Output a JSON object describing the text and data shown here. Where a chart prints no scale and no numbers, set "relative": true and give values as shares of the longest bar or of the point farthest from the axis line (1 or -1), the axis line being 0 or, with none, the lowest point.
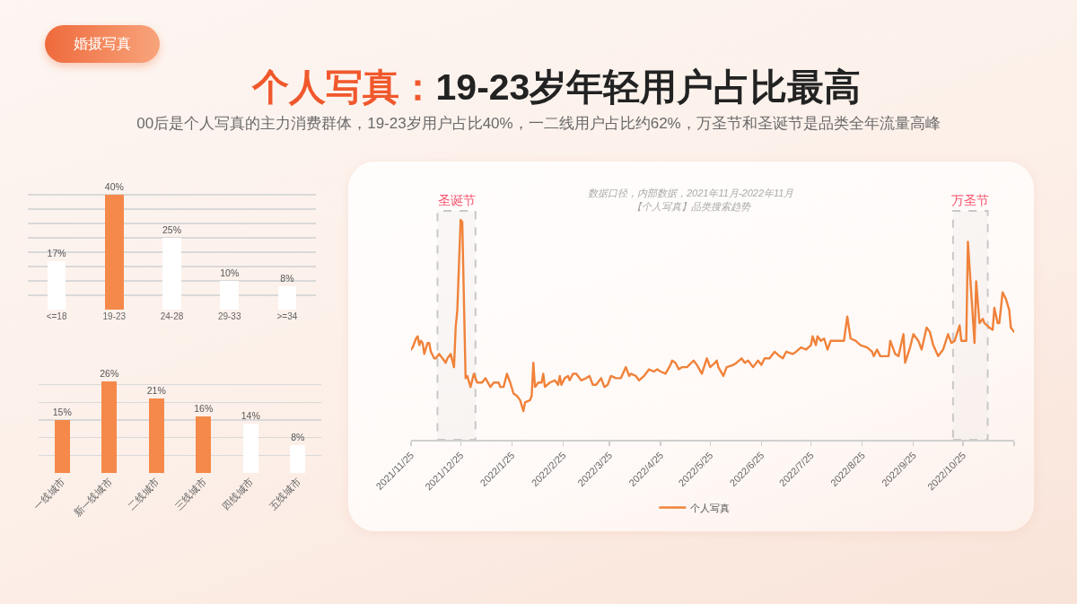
{
  "chart_data": [
    {
      "type": "bar",
      "title": "个人写真：19-23岁年轻用户占比最高",
      "subtitle": "00后是个人写真的主力消费群体，19-23岁用户占比40%，一二线用户占比约62%，万圣节和圣诞节是品类全年流量高峰",
      "annotations": [
        "婚摄写真"
      ],
      "categories": [
        "<=18",
        "19-23",
        "24-28",
        "29-33",
        ">=34"
      ],
      "values": [
        17,
        40,
        25,
        10,
        8
      ],
      "value_labels": [
        "17%",
        "40%",
        "25%",
        "10%",
        "8%"
      ],
      "colors": [
        "#ffffff",
        "#f5894a",
        "#ffffff",
        "#ffffff",
        "#ffffff"
      ],
      "grid": "y",
      "tick_labels": "x"
    },
    {
      "type": "bar",
      "categories": [
        "一线城市",
        "新一线城市",
        "二线城市",
        "三线城市",
        "四线城市",
        "五线城市"
      ],
      "values": [
        15,
        26,
        21,
        16,
        14,
        8
      ],
      "value_labels": [
        "15%",
        "26%",
        "21%",
        "16%",
        "14%",
        "8%"
      ],
      "colors": [
        "#f5894a",
        "#f5894a",
        "#f5894a",
        "#f5894a",
        "#ffffff",
        "#ffffff"
      ],
      "grid": "y",
      "tick_labels": "x"
    },
    {
      "type": "line",
      "title": "【个人写真】品类搜索趋势",
      "annotations": [
        "数据口径，内部数据，2021年11月-2022年11月"
      ],
      "relative": true,
      "legend": "bottom",
      "x": [
        "2021-11-25",
        "2021-11-26",
        "2021-11-28",
        "2021-11-29",
        "2021-11-30",
        "2021-12-01",
        "2021-12-02",
        "2021-12-03",
        "2021-12-05",
        "2021-12-06",
        "2021-12-07",
        "2021-12-09",
        "2021-12-10",
        "2021-12-12",
        "2021-12-14",
        "2021-12-16",
        "2021-12-17",
        "2021-12-19",
        "2021-12-21",
        "2021-12-22",
        "2021-12-23",
        "2021-12-25",
        "2021-12-26",
        "2021-12-28",
        "2021-12-29",
        "2021-12-31",
        "2022-01-02",
        "2022-01-04",
        "2022-01-07",
        "2022-01-09",
        "2022-01-12",
        "2022-01-14",
        "2022-01-17",
        "2022-01-18",
        "2022-01-20",
        "2022-01-22",
        "2022-01-24",
        "2022-01-26",
        "2022-01-28",
        "2022-01-30",
        "2022-02-01",
        "2022-02-02",
        "2022-02-05",
        "2022-02-06",
        "2022-02-07",
        "2022-02-08",
        "2022-02-10",
        "2022-02-12",
        "2022-02-13",
        "2022-02-14",
        "2022-02-17",
        "2022-02-20",
        "2022-02-22",
        "2022-02-23",
        "2022-02-24",
        "2022-02-26",
        "2022-02-28",
        "2022-03-01",
        "2022-03-03",
        "2022-03-05",
        "2022-03-06",
        "2022-03-08",
        "2022-03-11",
        "2022-03-13",
        "2022-03-15",
        "2022-03-17",
        "2022-03-20",
        "2022-03-22",
        "2022-03-24",
        "2022-03-26",
        "2022-03-29",
        "2022-04-01",
        "2022-04-04",
        "2022-04-06",
        "2022-04-07",
        "2022-04-10",
        "2022-04-12",
        "2022-04-15",
        "2022-04-18",
        "2022-04-21",
        "2022-04-23",
        "2022-04-25",
        "2022-04-28",
        "2022-05-01",
        "2022-05-02",
        "2022-05-04",
        "2022-05-06",
        "2022-05-08",
        "2022-05-11",
        "2022-05-15",
        "2022-05-17",
        "2022-05-20",
        "2022-05-23",
        "2022-05-25",
        "2022-05-28",
        "2022-05-29",
        "2022-05-30",
        "2022-06-02",
        "2022-06-04",
        "2022-06-08",
        "2022-06-10",
        "2022-06-13",
        "2022-06-15",
        "2022-06-17",
        "2022-06-20",
        "2022-06-23",
        "2022-06-25",
        "2022-06-27",
        "2022-06-30",
        "2022-07-03",
        "2022-07-06",
        "2022-07-08",
        "2022-07-10",
        "2022-07-14",
        "2022-07-16",
        "2022-07-19",
        "2022-07-22",
        "2022-07-25",
        "2022-07-26",
        "2022-07-28",
        "2022-07-29",
        "2022-07-31",
        "2022-08-02",
        "2022-08-04",
        "2022-08-06",
        "2022-08-09",
        "2022-08-12",
        "2022-08-14",
        "2022-08-16",
        "2022-08-18",
        "2022-08-21",
        "2022-08-24",
        "2022-08-28",
        "2022-08-31",
        "2022-09-01",
        "2022-09-03",
        "2022-09-05",
        "2022-09-08",
        "2022-09-10",
        "2022-09-11",
        "2022-09-14",
        "2022-09-16",
        "2022-09-19",
        "2022-09-20",
        "2022-09-23",
        "2022-09-25",
        "2022-09-28",
        "2022-09-30",
        "2022-10-03",
        "2022-10-05",
        "2022-10-07",
        "2022-10-10",
        "2022-10-13",
        "2022-10-16",
        "2022-10-18",
        "2022-10-20",
        "2022-10-23",
        "2022-10-24",
        "2022-10-27",
        "2022-10-28",
        "2022-11-01",
        "2022-11-02",
        "2022-11-04",
        "2022-11-06",
        "2022-11-07",
        "2022-11-10",
        "2022-11-12",
        "2022-11-13",
        "2022-11-15",
        "2022-11-16",
        "2022-11-18",
        "2022-11-20",
        "2022-11-22",
        "2022-11-23",
        "2022-11-25"
      ],
      "series": [
        {
          "name": "个人写真",
          "color": "#f0823a",
          "values": [
            0.41,
            0.42,
            0.46,
            0.47,
            0.43,
            0.45,
            0.44,
            0.39,
            0.44,
            0.44,
            0.4,
            0.37,
            0.37,
            0.39,
            0.37,
            0.35,
            0.37,
            0.39,
            0.33,
            0.51,
            0.59,
            1,
            0.99,
            0.28,
            0.29,
            0.24,
            0.3,
            0.26,
            0.26,
            0.28,
            0.24,
            0.26,
            0.26,
            0.24,
            0.24,
            0.3,
            0.26,
            0.21,
            0.2,
            0.18,
            0.13,
            0.17,
            0.18,
            0.2,
            0.35,
            0.24,
            0.26,
            0.26,
            0.3,
            0.24,
            0.26,
            0.27,
            0.25,
            0.29,
            0.25,
            0.28,
            0.29,
            0.27,
            0.3,
            0.3,
            0.29,
            0.27,
            0.28,
            0.29,
            0.25,
            0.25,
            0.28,
            0.24,
            0.25,
            0.29,
            0.28,
            0.28,
            0.33,
            0.29,
            0.3,
            0.29,
            0.27,
            0.29,
            0.32,
            0.31,
            0.32,
            0.31,
            0.3,
            0.34,
            0.36,
            0.35,
            0.32,
            0.33,
            0.33,
            0.36,
            0.34,
            0.3,
            0.37,
            0.33,
            0.35,
            0.36,
            0.33,
            0.29,
            0.33,
            0.34,
            0.35,
            0.37,
            0.35,
            0.36,
            0.33,
            0.36,
            0.34,
            0.37,
            0.37,
            0.4,
            0.38,
            0.37,
            0.4,
            0.39,
            0.4,
            0.42,
            0.41,
            0.43,
            0.47,
            0.43,
            0.47,
            0.45,
            0.46,
            0.41,
            0.45,
            0.45,
            0.45,
            0.45,
            0.56,
            0.46,
            0.45,
            0.43,
            0.42,
            0.4,
            0.38,
            0.41,
            0.38,
            0.38,
            0.38,
            0.45,
            0.39,
            0.38,
            0.48,
            0.35,
            0.42,
            0.48,
            0.45,
            0.41,
            0.51,
            0.49,
            0.43,
            0.38,
            0.41,
            0.48,
            0.44,
            0.45,
            0.52,
            0.45,
            0.45,
            0.9,
            0.44,
            0.72,
            0.53,
            0.55,
            0.53,
            0.51,
            0.5,
            0.6,
            0.53,
            0.53,
            0.67,
            0.64,
            0.59,
            0.51,
            0.49
          ]
        }
      ],
      "xlim": [
        "2021-11-25",
        "2022-11-25"
      ],
      "xticks": [
        {
          "value": "2021-11-25",
          "label": "2021/11/25"
        },
        {
          "value": "2021-12-25",
          "label": "2021/12/25"
        },
        {
          "value": "2022-01-25",
          "label": "2022/1/25"
        },
        {
          "value": "2022-02-25",
          "label": "2022/2/25"
        },
        {
          "value": "2022-03-25",
          "label": "2022/3/25"
        },
        {
          "value": "2022-04-25",
          "label": "2022/4/25"
        },
        {
          "value": "2022-05-25",
          "label": "2022/5/25"
        },
        {
          "value": "2022-06-25",
          "label": "2022/6/25"
        },
        {
          "value": "2022-07-25",
          "label": "2022/7/25"
        },
        {
          "value": "2022-08-25",
          "label": "2022/8/25"
        },
        {
          "value": "2022-09-25",
          "label": "2022/9/25"
        },
        {
          "value": "2022-10-25",
          "label": "2022/10/25"
        },
        {
          "value": "2022-11-25",
          "label": null
        }
      ],
      "bands": [
        {
          "axis": "x",
          "from": "2021-12-11",
          "to": "2022-01-03",
          "label": "圣诞节",
          "color": "#c8c8c8"
        },
        {
          "axis": "x",
          "from": "2022-10-19",
          "to": "2022-11-09",
          "label": "万圣节",
          "color": "#c8c8c8"
        }
      ]
    }
  ]
}
